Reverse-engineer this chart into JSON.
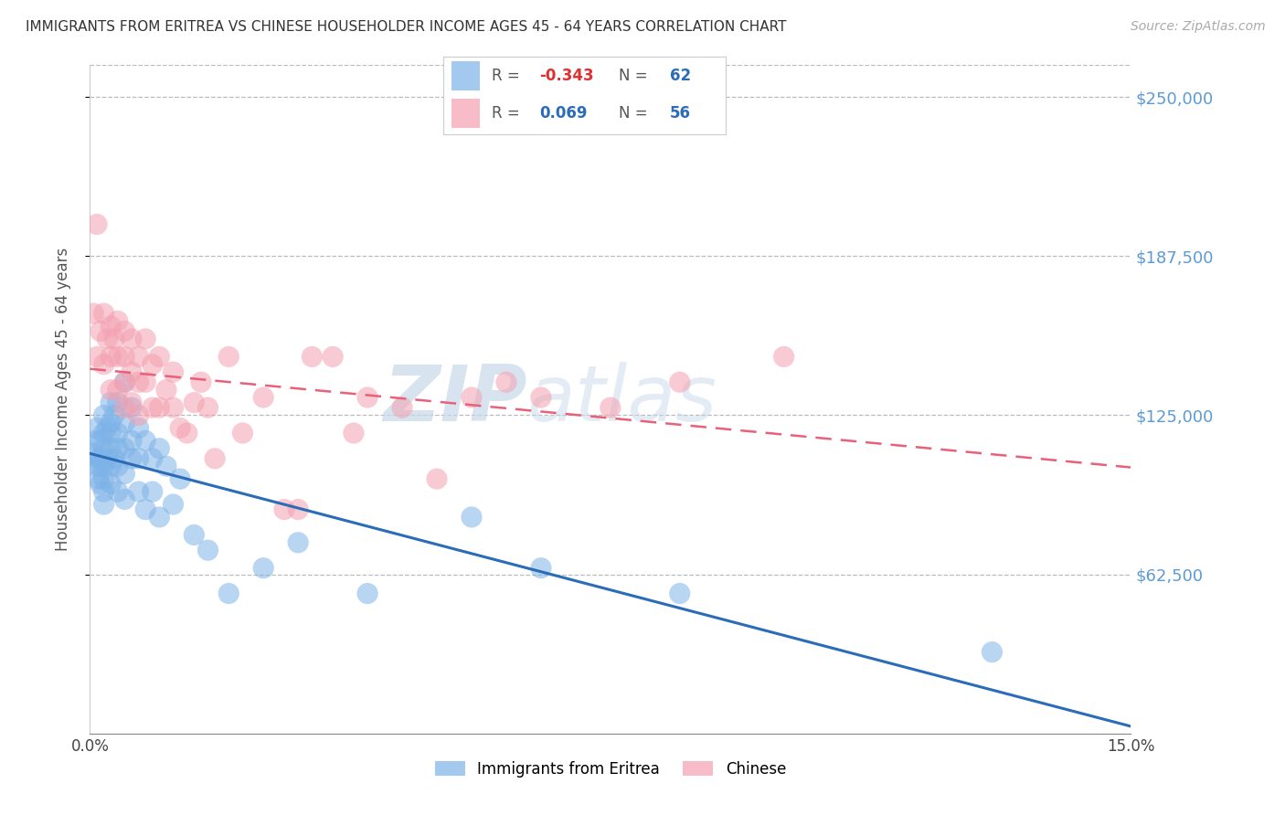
{
  "title": "IMMIGRANTS FROM ERITREA VS CHINESE HOUSEHOLDER INCOME AGES 45 - 64 YEARS CORRELATION CHART",
  "source": "Source: ZipAtlas.com",
  "ylabel": "Householder Income Ages 45 - 64 years",
  "ytick_labels": [
    "$62,500",
    "$125,000",
    "$187,500",
    "$250,000"
  ],
  "ytick_values": [
    62500,
    125000,
    187500,
    250000
  ],
  "ymin": 0,
  "ymax": 262500,
  "xmin": 0.0,
  "xmax": 0.15,
  "legend_eritrea_R": "-0.343",
  "legend_eritrea_N": "62",
  "legend_chinese_R": "0.069",
  "legend_chinese_N": "56",
  "color_eritrea": "#7EB3E8",
  "color_chinese": "#F4A0B0",
  "color_eritrea_line": "#2B6CB8",
  "color_chinese_line": "#E8607A",
  "color_right_labels": "#5B9BD5",
  "watermark_zip": "ZIP",
  "watermark_atlas": "atlas",
  "eritrea_x": [
    0.0005,
    0.0008,
    0.001,
    0.001,
    0.0012,
    0.0012,
    0.0015,
    0.0015,
    0.0015,
    0.0015,
    0.002,
    0.002,
    0.002,
    0.002,
    0.002,
    0.002,
    0.002,
    0.0025,
    0.0025,
    0.003,
    0.003,
    0.003,
    0.003,
    0.003,
    0.003,
    0.0035,
    0.0035,
    0.004,
    0.004,
    0.004,
    0.004,
    0.004,
    0.005,
    0.005,
    0.005,
    0.005,
    0.005,
    0.006,
    0.006,
    0.006,
    0.007,
    0.007,
    0.007,
    0.008,
    0.008,
    0.009,
    0.009,
    0.01,
    0.01,
    0.011,
    0.012,
    0.013,
    0.015,
    0.017,
    0.02,
    0.025,
    0.03,
    0.04,
    0.055,
    0.065,
    0.085,
    0.13
  ],
  "eritrea_y": [
    110000,
    115000,
    105000,
    120000,
    100000,
    108000,
    115000,
    108000,
    98000,
    105000,
    125000,
    118000,
    112000,
    105000,
    100000,
    95000,
    90000,
    120000,
    108000,
    130000,
    122000,
    118000,
    112000,
    105000,
    98000,
    125000,
    108000,
    130000,
    118000,
    112000,
    105000,
    95000,
    138000,
    122000,
    112000,
    102000,
    92000,
    128000,
    115000,
    108000,
    120000,
    108000,
    95000,
    115000,
    88000,
    108000,
    95000,
    112000,
    85000,
    105000,
    90000,
    100000,
    78000,
    72000,
    55000,
    65000,
    75000,
    55000,
    85000,
    65000,
    55000,
    32000
  ],
  "chinese_x": [
    0.0005,
    0.001,
    0.001,
    0.0015,
    0.002,
    0.002,
    0.0025,
    0.003,
    0.003,
    0.003,
    0.0035,
    0.004,
    0.004,
    0.004,
    0.005,
    0.005,
    0.005,
    0.005,
    0.006,
    0.006,
    0.006,
    0.007,
    0.007,
    0.007,
    0.008,
    0.008,
    0.009,
    0.009,
    0.01,
    0.01,
    0.011,
    0.012,
    0.012,
    0.013,
    0.014,
    0.015,
    0.016,
    0.017,
    0.018,
    0.02,
    0.022,
    0.025,
    0.028,
    0.03,
    0.032,
    0.035,
    0.038,
    0.04,
    0.045,
    0.05,
    0.055,
    0.06,
    0.065,
    0.075,
    0.085,
    0.1
  ],
  "chinese_y": [
    165000,
    200000,
    148000,
    158000,
    165000,
    145000,
    155000,
    160000,
    148000,
    135000,
    155000,
    162000,
    148000,
    135000,
    158000,
    148000,
    138000,
    128000,
    155000,
    142000,
    130000,
    148000,
    138000,
    125000,
    155000,
    138000,
    145000,
    128000,
    148000,
    128000,
    135000,
    142000,
    128000,
    120000,
    118000,
    130000,
    138000,
    128000,
    108000,
    148000,
    118000,
    132000,
    88000,
    88000,
    148000,
    148000,
    118000,
    132000,
    128000,
    100000,
    132000,
    138000,
    132000,
    128000,
    138000,
    148000
  ]
}
